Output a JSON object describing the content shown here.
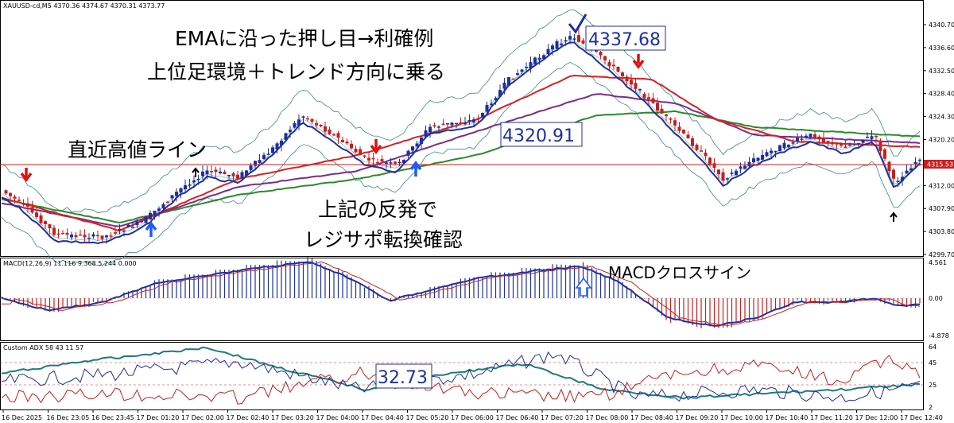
{
  "symbol_header": "XAUUSD-cd,M5  4370.36 4374.67 4370.31 4373.77",
  "macd_header": "MACD(12,26,9) 11.116 9.368 5.244 0.000",
  "adx_header": "Custom ADX 58 43 11 57",
  "annotations": {
    "line1": "EMAに沿った押し目→利確例",
    "line2": "上位足環境＋トレンド方向に乗る",
    "recent_high": "直近高値ライン",
    "rebound1": "上記の反発で",
    "rebound2": "レジサポ転換確認",
    "macd_cross": "MACDクロスサイン"
  },
  "boxes": {
    "high": "4337.68",
    "mid": "4320.91",
    "adx": "32.73"
  },
  "price_axis": [
    "4340.70",
    "4336.60",
    "4332.50",
    "4328.40",
    "4324.30",
    "4320.20",
    "4316.10",
    "4312.00",
    "4307.90",
    "4303.80",
    "4299.70"
  ],
  "current_price": "4315.53",
  "macd_axis": [
    "4.561",
    "0.00",
    "-4.878"
  ],
  "adx_axis": [
    "64",
    "45",
    "25",
    "2"
  ],
  "time_labels": [
    "16 Dec 2025",
    "16 Dec 23:05",
    "16 Dec 23:45",
    "17 Dec 01:20",
    "17 Dec 02:00",
    "17 Dec 02:40",
    "17 Dec 03:20",
    "17 Dec 04:00",
    "17 Dec 04:40",
    "17 Dec 05:20",
    "17 Dec 06:00",
    "17 Dec 06:40",
    "17 Dec 07:20",
    "17 Dec 08:00",
    "17 Dec 08:40",
    "17 Dec 09:20",
    "17 Dec 10:00",
    "17 Dec 10:40",
    "17 Dec 11:20",
    "17 Dec 12:00",
    "17 Dec 12:40"
  ],
  "colors": {
    "bull": "#1f2fa0",
    "bear": "#c81e1e",
    "ema_fast": "#1f2fa0",
    "ema_red": "#d92121",
    "ema_purple": "#7b2a8a",
    "ema_green": "#2a8a2a",
    "bands": "#3a8a8a",
    "arrow_up": "#1e5aff",
    "arrow_down": "#e01010"
  }
}
